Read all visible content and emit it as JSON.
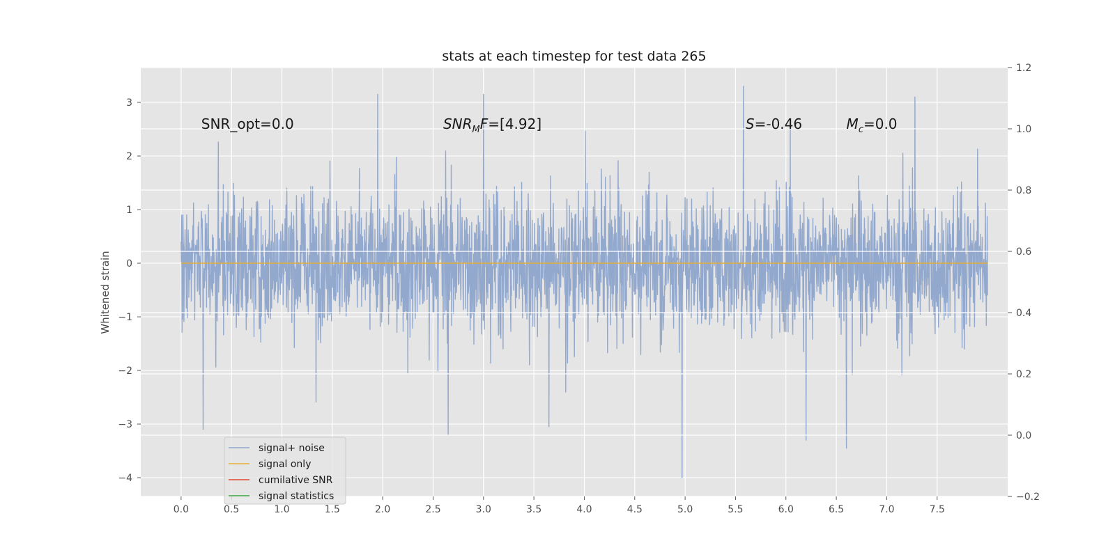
{
  "chart_data": {
    "type": "line",
    "title": "stats at each timestep for test data 265",
    "xlabel": "",
    "ylabel": "Whitened strain",
    "xlim": [
      -0.4,
      8.2
    ],
    "ylim": [
      -4.35,
      3.65
    ],
    "y2lim": [
      -0.2,
      1.2
    ],
    "grid": true,
    "legend_position": "lower-left",
    "x_ticks": [
      "0.0",
      "0.5",
      "1.0",
      "1.5",
      "2.0",
      "2.5",
      "3.0",
      "3.5",
      "4.0",
      "4.5",
      "5.0",
      "5.5",
      "6.0",
      "6.5",
      "7.0",
      "7.5"
    ],
    "y_ticks": [
      "3",
      "2",
      "1",
      "0",
      "−1",
      "−2",
      "−3",
      "−4"
    ],
    "y2_ticks": [
      "1.2",
      "1.0",
      "0.8",
      "0.6",
      "0.4",
      "0.2",
      "0.0",
      "−0.2"
    ],
    "annotations": [
      {
        "text": "SNR_opt=0.0",
        "x": 0.2,
        "y": 2.6
      },
      {
        "text": "SNRₘF=[4.92]",
        "main": "SNR",
        "sub": "M",
        "tail": "F=[4.92]",
        "x": 2.6,
        "y": 2.6
      },
      {
        "text": "S=-0.46",
        "main": "S",
        "tail": "=-0.46",
        "x": 5.6,
        "y": 2.6
      },
      {
        "text": "Mᴄ=0.0",
        "main": "M",
        "sub": "c",
        "tail": "=0.0",
        "x": 6.6,
        "y": 2.6
      }
    ],
    "series": [
      {
        "name": "signal+ noise",
        "color": "#92a8cd",
        "x_range": [
          0.0,
          8.0
        ],
        "spread": "approx. within ±1.5, peaks to 3.3 and −4.0",
        "sample_points": [
          [
            0.0,
            0.4
          ],
          [
            0.22,
            -3.1
          ],
          [
            1.95,
            3.15
          ],
          [
            2.65,
            -3.2
          ],
          [
            3.0,
            3.15
          ],
          [
            3.65,
            -3.05
          ],
          [
            4.97,
            -4.0
          ],
          [
            5.58,
            3.3
          ],
          [
            6.2,
            -3.3
          ],
          [
            6.6,
            -3.45
          ],
          [
            7.28,
            3.1
          ],
          [
            8.0,
            -0.6
          ]
        ]
      },
      {
        "name": "signal only",
        "color": "#e5ae38",
        "x": [
          0.0,
          8.0
        ],
        "values": [
          0.0,
          0.0
        ]
      },
      {
        "name": "cumilative SNR",
        "color": "#e24a33",
        "x": [],
        "values": []
      },
      {
        "name": "signal statistics",
        "color": "#3ea33e",
        "x": [],
        "values": []
      }
    ]
  }
}
